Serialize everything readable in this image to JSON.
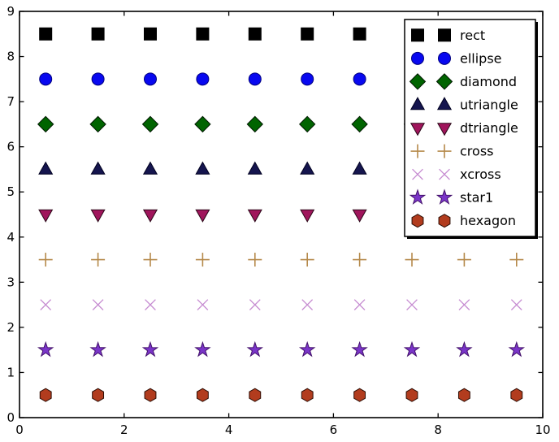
{
  "figure": {
    "background": "#ffffff",
    "axes_edge_color": "#000000"
  },
  "chart_data": {
    "type": "scatter",
    "title": "",
    "xlabel": "",
    "ylabel": "",
    "xlim": [
      0,
      10
    ],
    "ylim": [
      0,
      9
    ],
    "xticks": [
      0,
      2,
      4,
      6,
      8,
      10
    ],
    "yticks": [
      0,
      1,
      2,
      3,
      4,
      5,
      6,
      7,
      8,
      9
    ],
    "grid": false,
    "x": [
      0.5,
      1.5,
      2.5,
      3.5,
      4.5,
      5.5,
      6.5,
      7.5,
      8.5,
      9.5
    ],
    "series": [
      {
        "name": "rect",
        "marker": "square",
        "y": 8.5,
        "fill": "#000000",
        "edge": "#000000"
      },
      {
        "name": "ellipse",
        "marker": "circle",
        "y": 7.5,
        "fill": "#0808f0",
        "edge": "#000080"
      },
      {
        "name": "diamond",
        "marker": "diamond",
        "y": 6.5,
        "fill": "#006400",
        "edge": "#001a00"
      },
      {
        "name": "utriangle",
        "marker": "triangle-up",
        "y": 5.5,
        "fill": "#15154e",
        "edge": "#000020"
      },
      {
        "name": "dtriangle",
        "marker": "triangle-down",
        "y": 4.5,
        "fill": "#a0155c",
        "edge": "#2b0818"
      },
      {
        "name": "cross",
        "marker": "plus",
        "y": 3.5,
        "fill": "#b5894a",
        "edge": "#b5894a"
      },
      {
        "name": "xcross",
        "marker": "x",
        "y": 2.5,
        "fill": "#c68cd1",
        "edge": "#c68cd1"
      },
      {
        "name": "star1",
        "marker": "star",
        "y": 1.5,
        "fill": "#7a35c8",
        "edge": "#43116b"
      },
      {
        "name": "hexagon",
        "marker": "hexagon",
        "y": 0.5,
        "fill": "#b23c1e",
        "edge": "#2e0e05"
      }
    ],
    "legend": {
      "position": "upper right",
      "numpoints": 2,
      "shadow": true,
      "border_color": "#000000",
      "background": "#ffffff",
      "entries": [
        "rect",
        "ellipse",
        "diamond",
        "utriangle",
        "dtriangle",
        "cross",
        "xcross",
        "star1",
        "hexagon"
      ]
    }
  }
}
